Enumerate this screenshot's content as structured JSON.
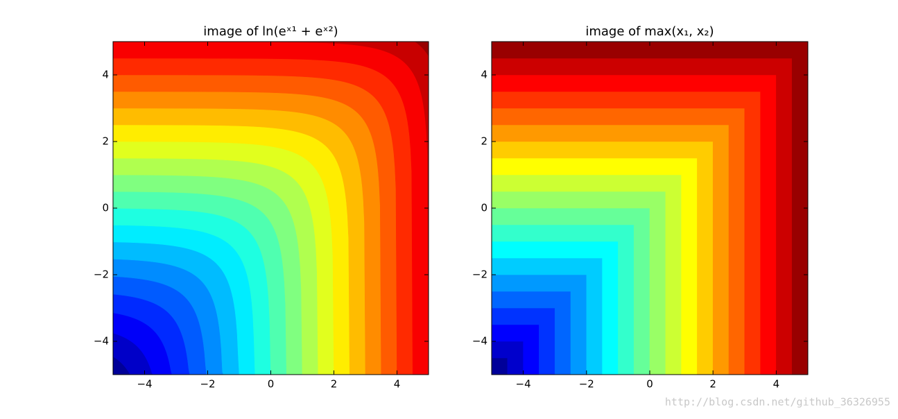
{
  "chart_data": [
    {
      "type": "contourf",
      "function": "logsumexp",
      "colormap": "jet",
      "title": "image of ln(eˣ¹ + eˣ²)",
      "levels": [
        -4.5,
        -4,
        -3.5,
        -3,
        -2.5,
        -2,
        -1.5,
        -1,
        -0.5,
        0,
        0.5,
        1,
        1.5,
        2,
        2.5,
        3,
        3.5,
        4,
        4.5,
        5,
        5.5,
        6
      ],
      "xlim": [
        -5,
        5
      ],
      "ylim": [
        -5,
        5
      ],
      "xticks": [
        {
          "value": -4,
          "label": "−4"
        },
        {
          "value": -2,
          "label": "−2"
        },
        0,
        2,
        4
      ],
      "yticks": [
        {
          "value": -4,
          "label": "−4"
        },
        {
          "value": -2,
          "label": "−2"
        },
        0,
        2,
        4
      ]
    },
    {
      "type": "contourf",
      "function": "max",
      "colormap": "jet",
      "title": "image of max(x₁, x₂)",
      "levels": [
        -5,
        -4.5,
        -4,
        -3.5,
        -3,
        -2.5,
        -2,
        -1.5,
        -1,
        -0.5,
        0,
        0.5,
        1,
        1.5,
        2,
        2.5,
        3,
        3.5,
        4,
        4.5,
        5
      ],
      "xlim": [
        -5,
        5
      ],
      "ylim": [
        -5,
        5
      ],
      "xticks": [
        {
          "value": -4,
          "label": "−4"
        },
        {
          "value": -2,
          "label": "−2"
        },
        0,
        2,
        4
      ],
      "yticks": [
        {
          "value": -4,
          "label": "−4"
        },
        {
          "value": -2,
          "label": "−2"
        },
        0,
        2,
        4
      ]
    }
  ],
  "watermark": "http://blog.csdn.net/github_36326955"
}
